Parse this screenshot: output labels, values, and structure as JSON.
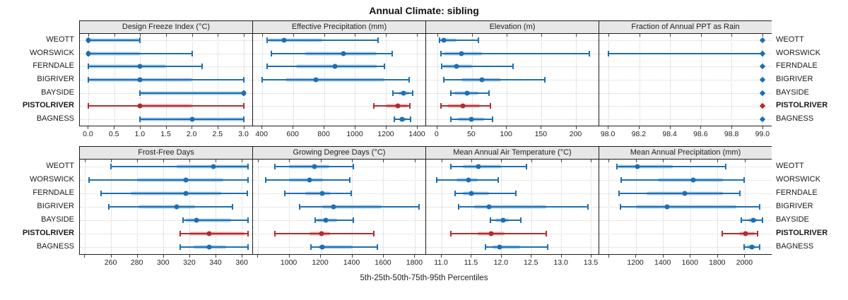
{
  "title": "Annual Climate: sibling",
  "caption": "5th-25th-50th-75th-95th Percentiles",
  "sites": [
    "WEOTT",
    "WORSWICK",
    "FERNDALE",
    "BIGRIVER",
    "BAYSIDE",
    "PISTOLRIVER",
    "BAGNESS"
  ],
  "highlight_site": "PISTOLRIVER",
  "colors": {
    "series": "#1d6fb3",
    "series_band": "#a9cbe6",
    "highlight": "#b42a2e",
    "highlight_band": "#e5abab",
    "grid": "#cdcdcd",
    "strip_bg": "#e7e7e7",
    "border": "#1c1c1c"
  },
  "chart_data": [
    {
      "type": "percentile_dotplot",
      "title": "Design Freeze Index (°C)",
      "xlabel": "",
      "ylabel": "",
      "xlim": [
        -0.17,
        3.17
      ],
      "ticks": [
        0,
        0.5,
        1,
        1.5,
        2,
        2.5,
        3
      ],
      "tick_labels": [
        "0.0",
        "0.5",
        "1.0",
        "1.5",
        "2.0",
        "2.5",
        "3.0"
      ],
      "minor_ticks": [],
      "marker": "circle",
      "percentiles": [
        "p5",
        "p25",
        "p50",
        "p75",
        "p95"
      ],
      "values": [
        [
          0,
          0,
          0,
          1,
          1
        ],
        [
          0,
          0,
          0,
          1,
          2
        ],
        [
          0,
          0,
          1,
          1.5,
          2.2
        ],
        [
          0,
          0,
          1,
          2,
          3
        ],
        [
          1,
          1,
          3,
          3,
          3
        ],
        [
          0,
          1,
          1,
          2,
          3
        ],
        [
          1,
          1,
          2,
          3,
          3
        ]
      ]
    },
    {
      "type": "percentile_dotplot",
      "title": "Effective Precipitation (mm)",
      "xlabel": "",
      "ylabel": "",
      "xlim": [
        340,
        1455
      ],
      "ticks": [
        400,
        600,
        800,
        1000,
        1200,
        1400
      ],
      "tick_labels": [
        "400",
        "600",
        "800",
        "1000",
        "1200",
        "1400"
      ],
      "minor_ticks": [],
      "marker": "circle",
      "percentiles": [
        "p5",
        "p25",
        "p50",
        "p75",
        "p95"
      ],
      "values": [
        [
          430,
          440,
          540,
          790,
          1150
        ],
        [
          460,
          680,
          925,
          1140,
          1240
        ],
        [
          430,
          620,
          870,
          1140,
          1190
        ],
        [
          400,
          550,
          745,
          1190,
          1350
        ],
        [
          1245,
          1280,
          1315,
          1350,
          1375
        ],
        [
          1120,
          1200,
          1275,
          1340,
          1355
        ],
        [
          1255,
          1285,
          1305,
          1330,
          1360
        ]
      ]
    },
    {
      "type": "percentile_dotplot",
      "title": "Elevation (m)",
      "xlabel": "",
      "ylabel": "",
      "xlim": [
        -16,
        233
      ],
      "ticks": [
        0,
        50,
        100,
        150,
        200
      ],
      "tick_labels": [
        "0",
        "50",
        "100",
        "150",
        "200"
      ],
      "minor_ticks": [],
      "marker": "circle",
      "percentiles": [
        "p5",
        "p25",
        "p50",
        "p75",
        "p95"
      ],
      "values": [
        [
          3,
          5,
          10,
          28,
          60
        ],
        [
          5,
          10,
          35,
          65,
          220
        ],
        [
          6,
          8,
          28,
          50,
          110
        ],
        [
          10,
          35,
          65,
          92,
          155
        ],
        [
          20,
          25,
          43,
          60,
          75
        ],
        [
          5,
          15,
          37,
          62,
          77
        ],
        [
          20,
          30,
          49,
          68,
          80
        ]
      ]
    },
    {
      "type": "percentile_dotplot",
      "title": "Fraction of Annual PPT as Rain",
      "xlabel": "",
      "ylabel": "",
      "xlim": [
        97.94,
        99.06
      ],
      "ticks": [
        98,
        98.2,
        98.4,
        98.6,
        98.8,
        99
      ],
      "tick_labels": [
        "98.0",
        "98.2",
        "98.4",
        "98.6",
        "98.8",
        "99.0"
      ],
      "minor_ticks": [],
      "marker": "diamond",
      "percentiles": [
        "p5",
        "p25",
        "p50",
        "p75",
        "p95"
      ],
      "values": [
        [
          99,
          99,
          99,
          99,
          99
        ],
        [
          98,
          99,
          99,
          99,
          99
        ],
        [
          99,
          99,
          99,
          99,
          99
        ],
        [
          99,
          99,
          99,
          99,
          99
        ],
        [
          99,
          99,
          99,
          99,
          99
        ],
        [
          99,
          99,
          99,
          99,
          99
        ],
        [
          99,
          99,
          99,
          99,
          99
        ]
      ]
    },
    {
      "type": "percentile_dotplot",
      "title": "Frost-Free Days",
      "xlabel": "",
      "ylabel": "",
      "xlim": [
        236,
        368
      ],
      "ticks": [
        260,
        280,
        300,
        320,
        340,
        360
      ],
      "tick_labels": [
        "260",
        "280",
        "300",
        "320",
        "340",
        "360"
      ],
      "minor_ticks": [
        240
      ],
      "marker": "circle",
      "percentiles": [
        "p5",
        "p25",
        "p50",
        "p75",
        "p95"
      ],
      "values": [
        [
          260,
          310,
          338,
          365,
          365
        ],
        [
          243,
          280,
          317,
          346,
          365
        ],
        [
          252,
          275,
          317,
          344,
          364
        ],
        [
          258,
          281,
          310,
          324,
          353
        ],
        [
          315,
          317,
          325,
          352,
          365
        ],
        [
          313,
          320,
          335,
          362,
          365
        ],
        [
          313,
          323,
          335,
          348,
          365
        ]
      ]
    },
    {
      "type": "percentile_dotplot",
      "title": "Growing Degree Days (°C)",
      "xlabel": "",
      "ylabel": "",
      "xlim": [
        768,
        1870
      ],
      "ticks": [
        1000,
        1200,
        1400,
        1600,
        1800
      ],
      "tick_labels": [
        "1000",
        "1200",
        "1400",
        "1600",
        "1800"
      ],
      "minor_ticks": [
        800
      ],
      "marker": "circle",
      "percentiles": [
        "p5",
        "p25",
        "p50",
        "p75",
        "p95"
      ],
      "values": [
        [
          910,
          1000,
          1160,
          1255,
          1410
        ],
        [
          850,
          1000,
          1130,
          1215,
          1385
        ],
        [
          970,
          1100,
          1210,
          1260,
          1395
        ],
        [
          1065,
          1210,
          1285,
          1590,
          1830
        ],
        [
          1165,
          1175,
          1235,
          1305,
          1410
        ],
        [
          910,
          1130,
          1205,
          1260,
          1540
        ],
        [
          1140,
          1190,
          1210,
          1405,
          1565
        ]
      ]
    },
    {
      "type": "percentile_dotplot",
      "title": "Mean Annual Air Temperature (°C)",
      "xlabel": "",
      "ylabel": "",
      "xlim": [
        10.74,
        13.63
      ],
      "ticks": [
        11,
        11.5,
        12,
        12.5,
        13,
        13.5
      ],
      "tick_labels": [
        "11.0",
        "11.5",
        "12.0",
        "12.5",
        "13.0",
        "13.5"
      ],
      "minor_ticks": [],
      "marker": "circle",
      "percentiles": [
        "p5",
        "p25",
        "p50",
        "p75",
        "p95"
      ],
      "values": [
        [
          11.15,
          11.35,
          11.62,
          12,
          12.42
        ],
        [
          10.92,
          11.25,
          11.45,
          11.6,
          11.95
        ],
        [
          11.22,
          11.35,
          11.5,
          11.8,
          12.25
        ],
        [
          11.28,
          11.55,
          11.8,
          12.75,
          13.45
        ],
        [
          11.82,
          11.9,
          12.03,
          12.12,
          12.33
        ],
        [
          11.15,
          11.6,
          11.83,
          12.05,
          12.75
        ],
        [
          11.73,
          11.85,
          11.97,
          12.32,
          12.78
        ]
      ]
    },
    {
      "type": "percentile_dotplot",
      "title": "Mean Annual Precipitation (mm)",
      "xlabel": "",
      "ylabel": "",
      "xlim": [
        930,
        2200
      ],
      "ticks": [
        1200,
        1400,
        1600,
        1800,
        2000
      ],
      "tick_labels": [
        "1200",
        "1400",
        "1600",
        "1800",
        "2000"
      ],
      "minor_ticks": [
        1000
      ],
      "marker": "circle",
      "percentiles": [
        "p5",
        "p25",
        "p50",
        "p75",
        "p95"
      ],
      "values": [
        [
          1060,
          1070,
          1210,
          1470,
          1860
        ],
        [
          1090,
          1360,
          1620,
          1840,
          1995
        ],
        [
          1075,
          1280,
          1560,
          1840,
          1965
        ],
        [
          1085,
          1200,
          1430,
          1940,
          2110
        ],
        [
          1975,
          2030,
          2065,
          2090,
          2130
        ],
        [
          1835,
          1960,
          2010,
          2075,
          2095
        ],
        [
          1995,
          2020,
          2055,
          2080,
          2110
        ]
      ]
    }
  ]
}
